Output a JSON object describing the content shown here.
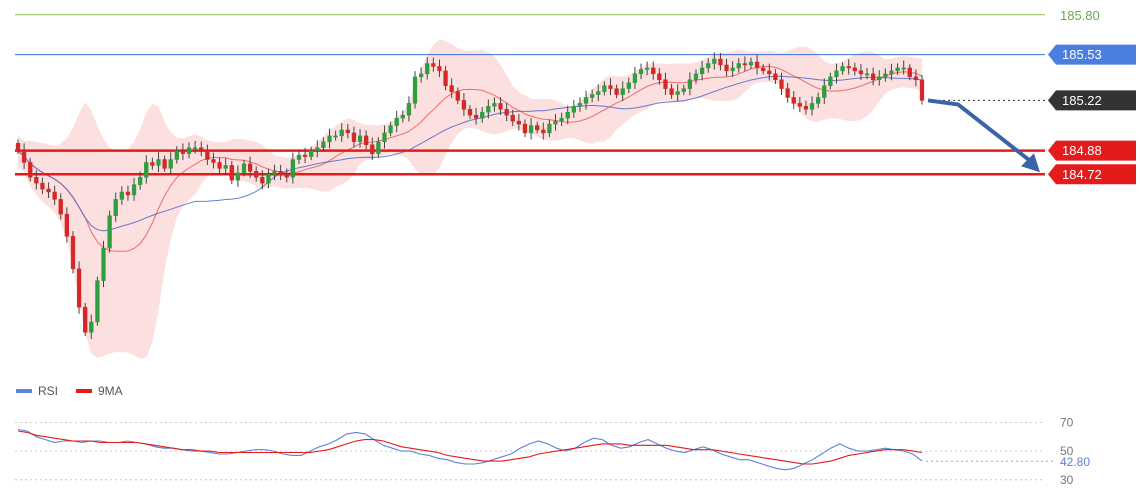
{
  "chart_data": [
    {
      "type": "candlestick",
      "title": "",
      "series": [
        {
          "name": "price",
          "role": "ohlc"
        },
        {
          "name": "bollinger-mid",
          "role": "line",
          "color": "#e23b3b"
        },
        {
          "name": "moving-average",
          "role": "line",
          "color": "#3e5fc4"
        }
      ],
      "price_scale": {
        "ylim": [
          183.3,
          185.9
        ]
      },
      "closes": [
        184.88,
        184.8,
        184.7,
        184.66,
        184.62,
        184.6,
        184.55,
        184.45,
        184.3,
        184.08,
        183.82,
        183.65,
        183.72,
        184.0,
        184.22,
        184.44,
        184.55,
        184.6,
        184.58,
        184.65,
        184.7,
        184.8,
        184.78,
        184.82,
        184.76,
        184.82,
        184.88,
        184.86,
        184.9,
        184.9,
        184.88,
        184.82,
        184.8,
        184.76,
        184.78,
        184.68,
        184.73,
        184.79,
        184.74,
        184.7,
        184.66,
        184.72,
        184.74,
        184.72,
        184.7,
        184.82,
        184.85,
        184.84,
        184.88,
        184.9,
        184.94,
        184.98,
        184.98,
        185.02,
        185.0,
        184.94,
        184.98,
        184.92,
        184.86,
        184.94,
        185.0,
        185.05,
        185.1,
        185.12,
        185.2,
        185.38,
        185.4,
        185.47,
        185.45,
        185.42,
        185.32,
        185.28,
        185.22,
        185.16,
        185.12,
        185.1,
        185.14,
        185.18,
        185.2,
        185.16,
        185.12,
        185.08,
        185.06,
        185.0,
        185.05,
        185.02,
        185.0,
        185.06,
        185.08,
        185.1,
        185.14,
        185.18,
        185.2,
        185.24,
        185.26,
        185.28,
        185.32,
        185.3,
        185.26,
        185.3,
        185.34,
        185.4,
        185.43,
        185.44,
        185.4,
        185.36,
        185.3,
        185.26,
        185.28,
        185.3,
        185.36,
        185.4,
        185.44,
        185.47,
        185.5,
        185.46,
        185.42,
        185.44,
        185.47,
        185.46,
        185.48,
        185.44,
        185.42,
        185.4,
        185.36,
        185.3,
        185.24,
        185.2,
        185.18,
        185.16,
        185.2,
        185.24,
        185.32,
        185.38,
        185.42,
        185.45,
        185.44,
        185.42,
        185.4,
        185.4,
        185.36,
        185.38,
        185.4,
        185.42,
        185.44,
        185.44,
        185.38,
        185.36,
        185.22
      ],
      "levels": [
        {
          "value": 185.8,
          "label": "185.80",
          "color": "#8bc34a",
          "style": "line"
        },
        {
          "value": 185.53,
          "label": "185.53",
          "color": "#3b6fd8",
          "style": "line",
          "label_bg": "#4a7fe0"
        },
        {
          "value": 185.22,
          "label": "185.22",
          "color": "#333333",
          "style": "dotted",
          "label_bg": "#333333"
        },
        {
          "value": 184.88,
          "label": "184.88",
          "color": "#e31b1b",
          "style": "thick",
          "label_bg": "#e31b1b"
        },
        {
          "value": 184.72,
          "label": "184.72",
          "color": "#e31b1b",
          "style": "thick",
          "label_bg": "#e31b1b"
        }
      ],
      "forecast_arrow": {
        "from_value": 185.22,
        "to_value": 184.72,
        "color": "#3a64a8"
      }
    },
    {
      "type": "line",
      "title": "",
      "legend": [
        {
          "name": "RSI",
          "color": "#5b84d6"
        },
        {
          "name": "9MA",
          "color": "#e31b1b"
        }
      ],
      "ylim": [
        25,
        80
      ],
      "guides": [
        70,
        50,
        30
      ],
      "tick_labels": [
        "70",
        "50",
        "30"
      ],
      "current_label": "42.80",
      "rsi": [
        65,
        64,
        60,
        58,
        56,
        57,
        57,
        56,
        57,
        57,
        56,
        56,
        57,
        56,
        55,
        53,
        52,
        52,
        51,
        50,
        50,
        49,
        48,
        48,
        49,
        50,
        51,
        51,
        50,
        48,
        47,
        47,
        50,
        53,
        55,
        58,
        62,
        63,
        62,
        58,
        54,
        52,
        50,
        50,
        48,
        47,
        45,
        44,
        42,
        41,
        41,
        42,
        44,
        46,
        48,
        52,
        55,
        57,
        55,
        52,
        50,
        52,
        56,
        59,
        58,
        54,
        52,
        53,
        56,
        58,
        55,
        52,
        50,
        49,
        51,
        53,
        51,
        48,
        46,
        44,
        44,
        42,
        40,
        38,
        37,
        38,
        41,
        44,
        48,
        52,
        55,
        52,
        50,
        50,
        51,
        52,
        51,
        50,
        48,
        43
      ],
      "ma9": [
        64,
        63,
        61,
        60,
        59,
        58,
        57,
        57,
        57,
        56,
        56,
        56,
        56,
        56,
        55,
        54,
        53,
        52,
        51,
        51,
        50,
        50,
        49,
        49,
        49,
        49,
        49,
        49,
        49,
        49,
        49,
        49,
        49,
        50,
        51,
        53,
        55,
        57,
        58,
        58,
        57,
        55,
        53,
        52,
        51,
        50,
        49,
        47,
        46,
        45,
        44,
        43,
        43,
        43,
        44,
        45,
        46,
        48,
        49,
        50,
        51,
        52,
        53,
        54,
        55,
        55,
        55,
        54,
        54,
        54,
        54,
        54,
        53,
        52,
        51,
        51,
        51,
        50,
        49,
        48,
        47,
        46,
        45,
        44,
        43,
        42,
        41,
        41,
        42,
        43,
        45,
        47,
        48,
        49,
        50,
        51,
        51,
        51,
        50,
        49
      ]
    }
  ]
}
